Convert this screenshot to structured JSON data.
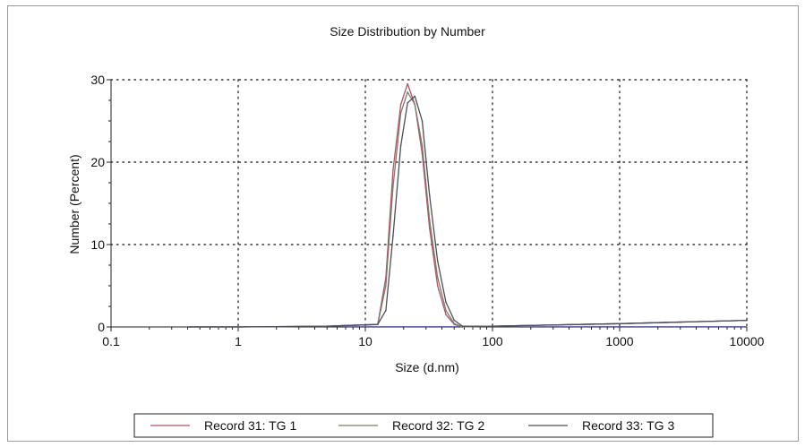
{
  "chart_data": {
    "type": "line",
    "title": "Size Distribution by Number",
    "xlabel": "Size (d.nm)",
    "ylabel": "Number (Percent)",
    "x_scale": "log",
    "xlim": [
      0.1,
      10000
    ],
    "ylim": [
      0,
      30
    ],
    "x_ticks": [
      "0.1",
      "1",
      "10",
      "100",
      "1000",
      "10000"
    ],
    "y_ticks": [
      "0",
      "10",
      "20",
      "30"
    ],
    "grid": true,
    "legend_position": "bottom",
    "series": [
      {
        "name": "Record 31: TG 1",
        "color": "#b0546a",
        "x": [
          0.4,
          1,
          5,
          12.5,
          14.5,
          16.5,
          19,
          21.5,
          24.5,
          28,
          32,
          37,
          43,
          50,
          58,
          100,
          1000,
          10000
        ],
        "y": [
          0,
          0,
          0.1,
          0.3,
          6,
          19,
          27,
          29.5,
          27,
          21,
          12,
          5,
          1.5,
          0.3,
          0,
          0.1,
          0.4,
          0.8
        ]
      },
      {
        "name": "Record 32: TG 2",
        "color": "#7a7c64",
        "x": [
          0.4,
          1,
          5,
          12.5,
          14.5,
          16.5,
          19,
          21.5,
          24.5,
          28,
          32,
          37,
          43,
          50,
          58,
          100,
          1000,
          10000
        ],
        "y": [
          0,
          0,
          0.1,
          0.3,
          5,
          17,
          26,
          28.5,
          27,
          22,
          13,
          6,
          2,
          0.4,
          0,
          0.1,
          0.4,
          0.8
        ]
      },
      {
        "name": "Record 33: TG 3",
        "color": "#4a4f5a",
        "x": [
          0.4,
          1,
          5,
          12.5,
          14.5,
          16.5,
          19,
          21.5,
          24.5,
          28,
          32,
          37,
          43,
          50,
          58,
          100,
          1000,
          10000
        ],
        "y": [
          0,
          0,
          0.1,
          0.3,
          2,
          11,
          22,
          27.2,
          28,
          25,
          16,
          8,
          3,
          0.8,
          0.1,
          0.1,
          0.4,
          0.8
        ]
      }
    ]
  },
  "colors": {
    "axis": "#222222",
    "grid": "#333333",
    "frame": "#9a9a9a",
    "baseline": "#3a5ba8"
  }
}
